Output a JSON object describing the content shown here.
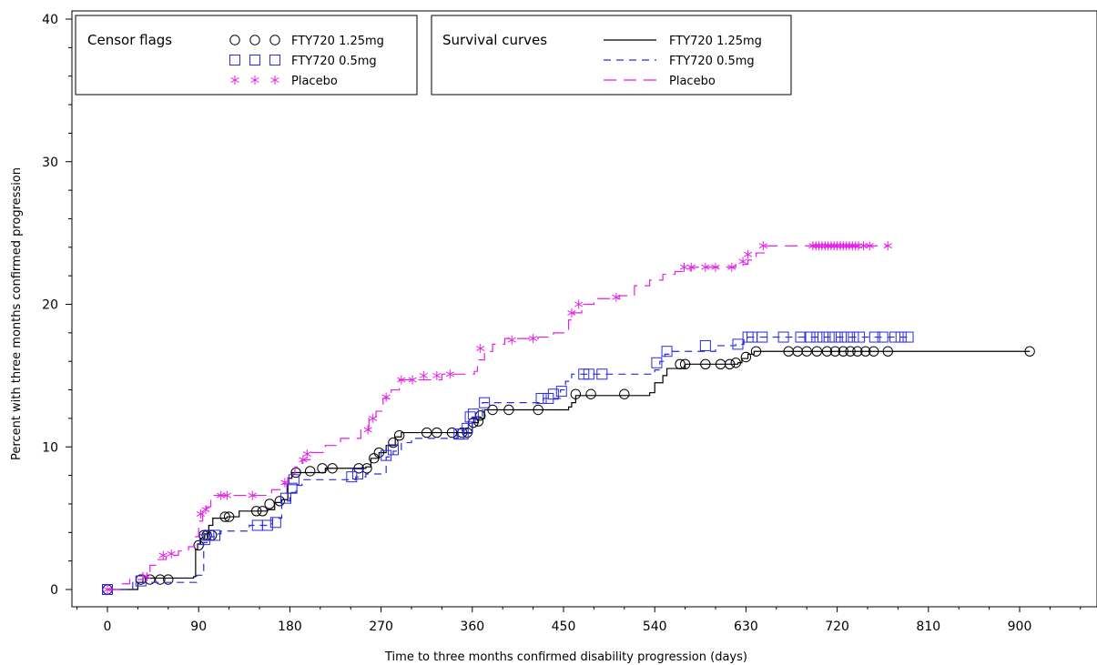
{
  "chart_data": {
    "type": "line",
    "title": "",
    "xlabel": "Time to three months confirmed disability progression (days)",
    "ylabel": "Percent with three months confirmed progression",
    "xlim": [
      -35,
      985
    ],
    "ylim": [
      -1,
      40
    ],
    "xticks": [
      0,
      90,
      180,
      270,
      360,
      450,
      540,
      630,
      720,
      810,
      900
    ],
    "yticks": [
      0,
      10,
      20,
      30,
      40
    ],
    "grid": false,
    "legends": {
      "censor_title": "Censor flags",
      "survival_title": "Survival curves",
      "placement": "top-left"
    },
    "series": [
      {
        "name": "FTY720 1.25mg",
        "color": "#000000",
        "line_style": "solid",
        "marker": "circle",
        "step_points": [
          [
            0,
            0
          ],
          [
            30,
            0.5
          ],
          [
            35,
            0.8
          ],
          [
            85,
            0.9
          ],
          [
            87,
            2.8
          ],
          [
            89,
            3.2
          ],
          [
            92,
            3.6
          ],
          [
            96,
            3.9
          ],
          [
            100,
            4.5
          ],
          [
            104,
            5.0
          ],
          [
            118,
            5.1
          ],
          [
            130,
            5.5
          ],
          [
            158,
            5.6
          ],
          [
            165,
            6.1
          ],
          [
            172,
            6.3
          ],
          [
            178,
            7.8
          ],
          [
            182,
            8.2
          ],
          [
            215,
            8.5
          ],
          [
            245,
            8.5
          ],
          [
            255,
            8.6
          ],
          [
            260,
            9.2
          ],
          [
            268,
            9.6
          ],
          [
            275,
            10.1
          ],
          [
            284,
            10.7
          ],
          [
            290,
            11.0
          ],
          [
            352,
            11.0
          ],
          [
            360,
            11.7
          ],
          [
            366,
            12.0
          ],
          [
            372,
            12.6
          ],
          [
            455,
            12.8
          ],
          [
            458,
            13.1
          ],
          [
            462,
            13.6
          ],
          [
            535,
            13.8
          ],
          [
            540,
            14.5
          ],
          [
            548,
            15.0
          ],
          [
            552,
            15.5
          ],
          [
            570,
            15.8
          ],
          [
            622,
            15.9
          ],
          [
            626,
            16.2
          ],
          [
            632,
            16.5
          ],
          [
            638,
            16.7
          ],
          [
            910,
            16.7
          ]
        ],
        "censored": [
          [
            0,
            0
          ],
          [
            33,
            0.7
          ],
          [
            42,
            0.7
          ],
          [
            52,
            0.7
          ],
          [
            60,
            0.7
          ],
          [
            90,
            3.1
          ],
          [
            95,
            3.8
          ],
          [
            98,
            3.8
          ],
          [
            103,
            3.8
          ],
          [
            116,
            5.1
          ],
          [
            120,
            5.1
          ],
          [
            147,
            5.5
          ],
          [
            153,
            5.5
          ],
          [
            160,
            6.0
          ],
          [
            170,
            6.2
          ],
          [
            186,
            8.2
          ],
          [
            200,
            8.3
          ],
          [
            212,
            8.5
          ],
          [
            222,
            8.5
          ],
          [
            248,
            8.5
          ],
          [
            256,
            8.5
          ],
          [
            263,
            9.2
          ],
          [
            268,
            9.6
          ],
          [
            282,
            10.3
          ],
          [
            288,
            10.8
          ],
          [
            315,
            11.0
          ],
          [
            325,
            11.0
          ],
          [
            340,
            11.0
          ],
          [
            350,
            11.0
          ],
          [
            355,
            11.0
          ],
          [
            361,
            11.7
          ],
          [
            366,
            11.8
          ],
          [
            368,
            12.2
          ],
          [
            380,
            12.6
          ],
          [
            396,
            12.6
          ],
          [
            425,
            12.6
          ],
          [
            462,
            13.7
          ],
          [
            477,
            13.7
          ],
          [
            510,
            13.7
          ],
          [
            565,
            15.8
          ],
          [
            570,
            15.8
          ],
          [
            590,
            15.8
          ],
          [
            605,
            15.8
          ],
          [
            614,
            15.8
          ],
          [
            620,
            15.9
          ],
          [
            630,
            16.3
          ],
          [
            640,
            16.7
          ],
          [
            672,
            16.7
          ],
          [
            681,
            16.7
          ],
          [
            690,
            16.7
          ],
          [
            700,
            16.7
          ],
          [
            710,
            16.7
          ],
          [
            718,
            16.7
          ],
          [
            726,
            16.7
          ],
          [
            733,
            16.7
          ],
          [
            740,
            16.7
          ],
          [
            748,
            16.7
          ],
          [
            756,
            16.7
          ],
          [
            770,
            16.7
          ],
          [
            910,
            16.7
          ]
        ]
      },
      {
        "name": "FTY720 0.5mg",
        "color": "#2929e6",
        "line_style": "dash",
        "marker": "square",
        "step_points": [
          [
            0,
            0
          ],
          [
            25,
            0.5
          ],
          [
            88,
            1.0
          ],
          [
            95,
            3.3
          ],
          [
            102,
            3.7
          ],
          [
            108,
            3.9
          ],
          [
            112,
            4.1
          ],
          [
            140,
            4.5
          ],
          [
            158,
            4.6
          ],
          [
            163,
            5.0
          ],
          [
            172,
            6.2
          ],
          [
            180,
            6.8
          ],
          [
            186,
            7.3
          ],
          [
            192,
            7.7
          ],
          [
            245,
            7.9
          ],
          [
            255,
            8.1
          ],
          [
            275,
            9.3
          ],
          [
            282,
            9.7
          ],
          [
            290,
            10.3
          ],
          [
            300,
            10.6
          ],
          [
            345,
            10.8
          ],
          [
            352,
            11.2
          ],
          [
            356,
            11.8
          ],
          [
            360,
            12.1
          ],
          [
            370,
            13.1
          ],
          [
            430,
            13.4
          ],
          [
            447,
            14.0
          ],
          [
            452,
            14.6
          ],
          [
            458,
            15.1
          ],
          [
            540,
            15.4
          ],
          [
            545,
            16.0
          ],
          [
            550,
            16.5
          ],
          [
            555,
            16.7
          ],
          [
            600,
            17.1
          ],
          [
            620,
            17.2
          ],
          [
            628,
            17.6
          ],
          [
            632,
            17.7
          ],
          [
            790,
            17.7
          ]
        ],
        "censored": [
          [
            0,
            0
          ],
          [
            33,
            0.6
          ],
          [
            96,
            3.5
          ],
          [
            100,
            3.8
          ],
          [
            106,
            3.8
          ],
          [
            148,
            4.5
          ],
          [
            158,
            4.5
          ],
          [
            166,
            4.7
          ],
          [
            176,
            6.4
          ],
          [
            182,
            7.1
          ],
          [
            184,
            7.7
          ],
          [
            241,
            7.9
          ],
          [
            247,
            8.1
          ],
          [
            275,
            9.4
          ],
          [
            282,
            9.8
          ],
          [
            347,
            10.9
          ],
          [
            351,
            10.9
          ],
          [
            355,
            11.3
          ],
          [
            358,
            12.1
          ],
          [
            361,
            12.3
          ],
          [
            372,
            13.1
          ],
          [
            428,
            13.4
          ],
          [
            435,
            13.4
          ],
          [
            440,
            13.7
          ],
          [
            448,
            13.9
          ],
          [
            470,
            15.1
          ],
          [
            475,
            15.1
          ],
          [
            488,
            15.1
          ],
          [
            542,
            15.9
          ],
          [
            552,
            16.7
          ],
          [
            590,
            17.1
          ],
          [
            622,
            17.2
          ],
          [
            632,
            17.7
          ],
          [
            636,
            17.7
          ],
          [
            646,
            17.7
          ],
          [
            667,
            17.7
          ],
          [
            684,
            17.7
          ],
          [
            693,
            17.7
          ],
          [
            700,
            17.7
          ],
          [
            706,
            17.7
          ],
          [
            712,
            17.7
          ],
          [
            718,
            17.7
          ],
          [
            724,
            17.7
          ],
          [
            730,
            17.7
          ],
          [
            736,
            17.7
          ],
          [
            742,
            17.7
          ],
          [
            757,
            17.7
          ],
          [
            765,
            17.7
          ],
          [
            777,
            17.7
          ],
          [
            783,
            17.7
          ],
          [
            790,
            17.7
          ]
        ]
      },
      {
        "name": "Placebo",
        "color": "#e61ee6",
        "line_style": "longdash",
        "marker": "asterisk",
        "step_points": [
          [
            0,
            0
          ],
          [
            12,
            0.4
          ],
          [
            22,
            0.7
          ],
          [
            35,
            1.2
          ],
          [
            42,
            1.7
          ],
          [
            50,
            2.1
          ],
          [
            58,
            2.4
          ],
          [
            70,
            2.7
          ],
          [
            80,
            3.0
          ],
          [
            86,
            3.7
          ],
          [
            90,
            4.8
          ],
          [
            94,
            5.4
          ],
          [
            98,
            5.8
          ],
          [
            102,
            6.6
          ],
          [
            155,
            6.6
          ],
          [
            162,
            7.0
          ],
          [
            172,
            7.4
          ],
          [
            178,
            8.1
          ],
          [
            185,
            8.6
          ],
          [
            192,
            9.1
          ],
          [
            200,
            9.6
          ],
          [
            215,
            10.1
          ],
          [
            230,
            10.6
          ],
          [
            250,
            11.2
          ],
          [
            258,
            12.0
          ],
          [
            265,
            12.5
          ],
          [
            272,
            13.4
          ],
          [
            280,
            14.0
          ],
          [
            288,
            14.7
          ],
          [
            330,
            15.1
          ],
          [
            362,
            15.3
          ],
          [
            365,
            16.1
          ],
          [
            372,
            16.7
          ],
          [
            380,
            17.2
          ],
          [
            392,
            17.6
          ],
          [
            425,
            17.7
          ],
          [
            440,
            18.0
          ],
          [
            455,
            18.9
          ],
          [
            460,
            19.4
          ],
          [
            468,
            20.0
          ],
          [
            480,
            20.4
          ],
          [
            505,
            20.6
          ],
          [
            520,
            21.3
          ],
          [
            535,
            21.7
          ],
          [
            548,
            22.1
          ],
          [
            560,
            22.3
          ],
          [
            575,
            22.6
          ],
          [
            610,
            22.6
          ],
          [
            620,
            22.8
          ],
          [
            632,
            23.1
          ],
          [
            640,
            23.6
          ],
          [
            648,
            24.1
          ],
          [
            770,
            24.1
          ]
        ],
        "censored": [
          [
            0,
            0
          ],
          [
            39,
            0.9
          ],
          [
            55,
            2.4
          ],
          [
            63,
            2.5
          ],
          [
            92,
            5.3
          ],
          [
            97,
            5.6
          ],
          [
            112,
            6.6
          ],
          [
            118,
            6.6
          ],
          [
            143,
            6.6
          ],
          [
            175,
            7.5
          ],
          [
            193,
            9.1
          ],
          [
            197,
            9.5
          ],
          [
            257,
            11.2
          ],
          [
            262,
            12.0
          ],
          [
            275,
            13.5
          ],
          [
            290,
            14.7
          ],
          [
            301,
            14.7
          ],
          [
            312,
            15.0
          ],
          [
            325,
            15.0
          ],
          [
            338,
            15.1
          ],
          [
            368,
            16.9
          ],
          [
            399,
            17.5
          ],
          [
            420,
            17.6
          ],
          [
            458,
            19.4
          ],
          [
            465,
            20.0
          ],
          [
            502,
            20.5
          ],
          [
            569,
            22.6
          ],
          [
            576,
            22.6
          ],
          [
            590,
            22.6
          ],
          [
            600,
            22.6
          ],
          [
            616,
            22.6
          ],
          [
            627,
            23.0
          ],
          [
            632,
            23.5
          ],
          [
            647,
            24.1
          ],
          [
            696,
            24.1
          ],
          [
            699,
            24.1
          ],
          [
            702,
            24.1
          ],
          [
            705,
            24.1
          ],
          [
            708,
            24.1
          ],
          [
            711,
            24.1
          ],
          [
            714,
            24.1
          ],
          [
            717,
            24.1
          ],
          [
            720,
            24.1
          ],
          [
            723,
            24.1
          ],
          [
            726,
            24.1
          ],
          [
            729,
            24.1
          ],
          [
            732,
            24.1
          ],
          [
            735,
            24.1
          ],
          [
            738,
            24.1
          ],
          [
            741,
            24.1
          ],
          [
            746,
            24.1
          ],
          [
            752,
            24.1
          ],
          [
            770,
            24.1
          ]
        ]
      }
    ]
  }
}
